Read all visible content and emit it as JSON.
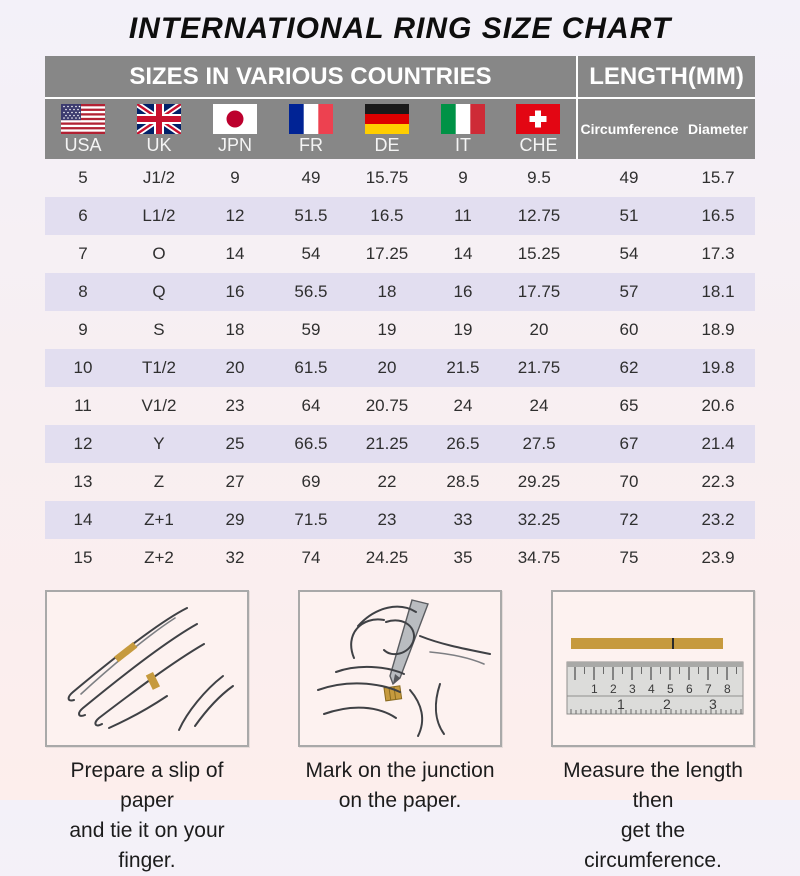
{
  "title": "INTERNATIONAL RING SIZE CHART",
  "table": {
    "group_headers": {
      "countries": "SIZES IN VARIOUS COUNTRIES",
      "length": "LENGTH(MM)"
    },
    "countries": [
      {
        "code": "USA",
        "flag": "usa-flag-icon"
      },
      {
        "code": "UK",
        "flag": "uk-flag-icon"
      },
      {
        "code": "JPN",
        "flag": "japan-flag-icon"
      },
      {
        "code": "FR",
        "flag": "france-flag-icon"
      },
      {
        "code": "DE",
        "flag": "germany-flag-icon"
      },
      {
        "code": "IT",
        "flag": "italy-flag-icon"
      },
      {
        "code": "CHE",
        "flag": "switzerland-flag-icon"
      }
    ],
    "length_columns": [
      {
        "label": "Circumference"
      },
      {
        "label": "Diameter"
      }
    ],
    "rows": [
      [
        "5",
        "J1/2",
        "9",
        "49",
        "15.75",
        "9",
        "9.5",
        "49",
        "15.7"
      ],
      [
        "6",
        "L1/2",
        "12",
        "51.5",
        "16.5",
        "11",
        "12.75",
        "51",
        "16.5"
      ],
      [
        "7",
        "O",
        "14",
        "54",
        "17.25",
        "14",
        "15.25",
        "54",
        "17.3"
      ],
      [
        "8",
        "Q",
        "16",
        "56.5",
        "18",
        "16",
        "17.75",
        "57",
        "18.1"
      ],
      [
        "9",
        "S",
        "18",
        "59",
        "19",
        "19",
        "20",
        "60",
        "18.9"
      ],
      [
        "10",
        "T1/2",
        "20",
        "61.5",
        "20",
        "21.5",
        "21.75",
        "62",
        "19.8"
      ],
      [
        "11",
        "V1/2",
        "23",
        "64",
        "20.75",
        "24",
        "24",
        "65",
        "20.6"
      ],
      [
        "12",
        "Y",
        "25",
        "66.5",
        "21.25",
        "26.5",
        "27.5",
        "67",
        "21.4"
      ],
      [
        "13",
        "Z",
        "27",
        "69",
        "22",
        "28.5",
        "29.25",
        "70",
        "22.3"
      ],
      [
        "14",
        "Z+1",
        "29",
        "71.5",
        "23",
        "33",
        "32.25",
        "72",
        "23.2"
      ],
      [
        "15",
        "Z+2",
        "32",
        "74",
        "24.25",
        "35",
        "34.75",
        "75",
        "23.9"
      ]
    ]
  },
  "instructions": [
    {
      "icon": "hand-with-paper-strip-icon",
      "caption_line1": "Prepare a slip of paper",
      "caption_line2": "and tie it on your finger."
    },
    {
      "icon": "hand-marking-pen-icon",
      "caption_line1": "Mark on the junction",
      "caption_line2": "on the paper."
    },
    {
      "icon": "ruler-measure-icon",
      "caption_line1": "Measure the length then",
      "caption_line2": "get the circumference."
    }
  ],
  "ruler": {
    "cm": [
      "1",
      "2",
      "3",
      "4",
      "5",
      "6",
      "7",
      "8"
    ],
    "inch": [
      "1",
      "2",
      "3"
    ]
  },
  "colors": {
    "header_gray": "#878787",
    "row_alt": "#e2def0",
    "paper_gold": "#c69a3e",
    "bg_top": "#f3f1f9",
    "bg_bottom": "#fdeeec"
  }
}
